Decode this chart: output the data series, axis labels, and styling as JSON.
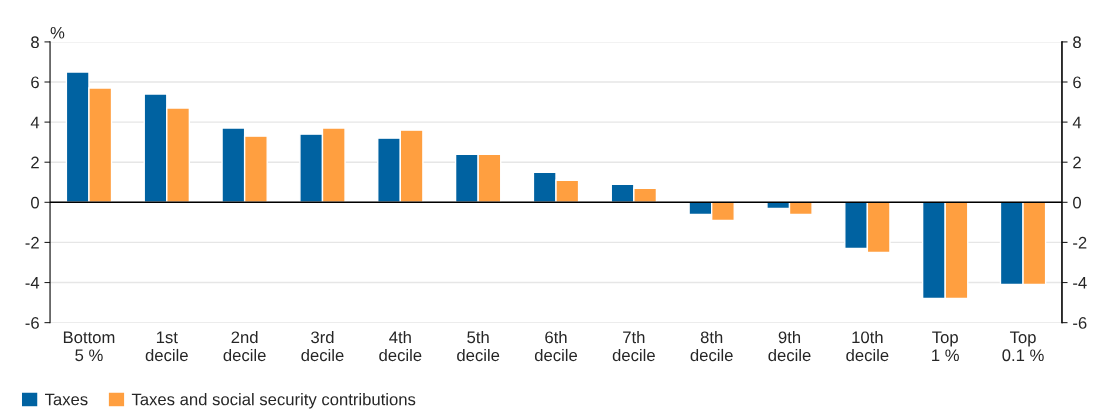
{
  "chart_data": {
    "type": "bar",
    "ylabel": "%",
    "categories": [
      "Bottom\n5 %",
      "1st\ndecile",
      "2nd\ndecile",
      "3rd\ndecile",
      "4th\ndecile",
      "5th\ndecile",
      "6th\ndecile",
      "7th\ndecile",
      "8th\ndecile",
      "9th\ndecile",
      "10th\ndecile",
      "Top\n1 %",
      "Top\n0.1 %"
    ],
    "series": [
      {
        "name": "Taxes",
        "color": "#0062a1",
        "values": [
          6.5,
          5.4,
          3.7,
          3.4,
          3.2,
          2.4,
          1.5,
          0.9,
          -0.6,
          -0.3,
          -2.3,
          -4.8,
          -4.1
        ]
      },
      {
        "name": "Taxes and social security contributions",
        "color": "#ff9f40",
        "values": [
          5.7,
          4.7,
          3.3,
          3.7,
          3.6,
          2.4,
          1.1,
          0.7,
          -0.9,
          -0.6,
          -2.5,
          -4.8,
          -4.1
        ]
      }
    ],
    "ylim": [
      -6,
      8
    ],
    "yticks": [
      -6,
      -4,
      -2,
      0,
      2,
      4,
      6,
      8
    ],
    "y2lim": [
      -6,
      8
    ],
    "y2ticks": [
      -6,
      -4,
      -2,
      0,
      2,
      4,
      6,
      8
    ],
    "ref_lines": [
      {
        "axis": "y",
        "value": 0,
        "color": "#000000"
      }
    ],
    "grid": "y",
    "legend": "bottom left"
  }
}
